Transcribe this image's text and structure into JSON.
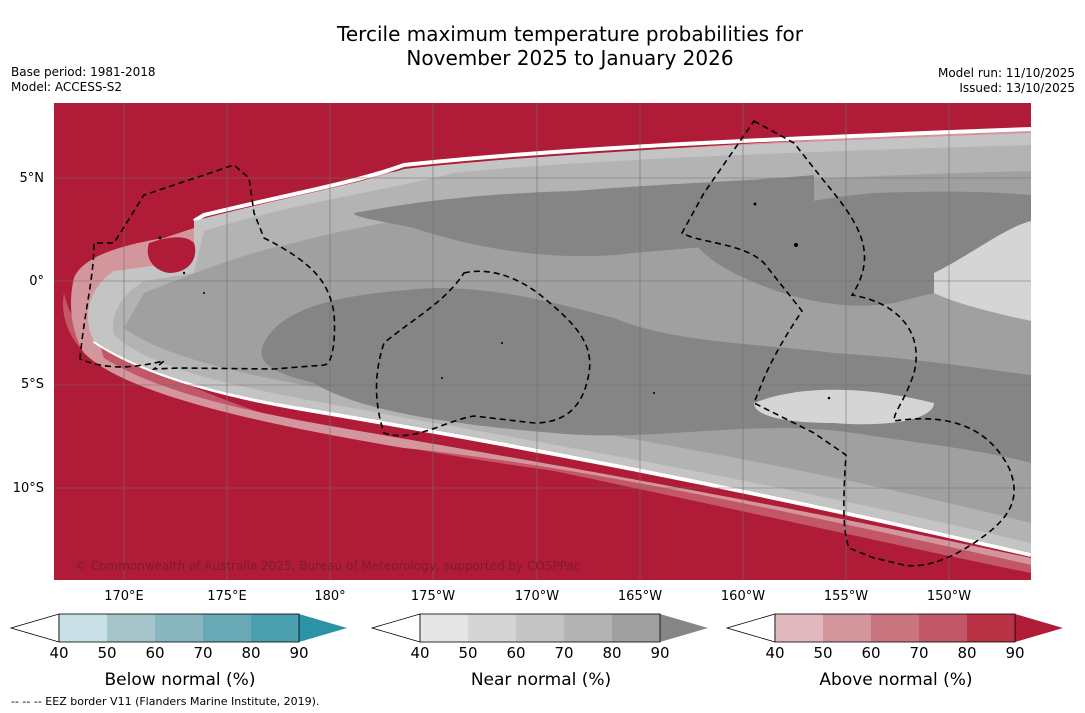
{
  "title": {
    "line1": "Tercile maximum temperature probabilities for",
    "line2": "November 2025 to January 2026"
  },
  "meta": {
    "base_period": "Base period: 1981-2018",
    "model": "Model: ACCESS-S2",
    "model_run": "Model run: 11/10/2025",
    "issued": "Issued: 13/10/2025"
  },
  "map": {
    "lat_labels": [
      "5°N",
      "0°",
      "5°S",
      "10°S"
    ],
    "lon_labels": [
      "170°E",
      "175°E",
      "180°",
      "175°W",
      "170°W",
      "165°W",
      "160°W",
      "155°W",
      "150°W"
    ],
    "copyright": "© Commonwealth of Australia 2025, Bureau of Meteorology, supported by COSPPac"
  },
  "colorbars": [
    {
      "name": "below",
      "label": "Below normal (%)",
      "ticks": [
        "40",
        "50",
        "60",
        "70",
        "80",
        "90"
      ],
      "colors": [
        "#c9e0e6",
        "#a6c5cb",
        "#88b7c0",
        "#6aa9b6",
        "#4b9fae",
        "#2b93a8"
      ]
    },
    {
      "name": "near",
      "label": "Near normal (%)",
      "ticks": [
        "40",
        "50",
        "60",
        "70",
        "80",
        "90"
      ],
      "colors": [
        "#e6e6e6",
        "#d5d5d5",
        "#c4c4c4",
        "#b3b3b3",
        "#a0a0a0",
        "#858585"
      ]
    },
    {
      "name": "above",
      "label": "Above normal (%)",
      "ticks": [
        "40",
        "50",
        "60",
        "70",
        "80",
        "90"
      ],
      "colors": [
        "#e0b8bd",
        "#d4969d",
        "#c97580",
        "#c25767",
        "#b93346",
        "#b01c37"
      ]
    }
  ],
  "footnote": "--  --  -- EEZ border V11 (Flanders Marine Institute, 2019)."
}
